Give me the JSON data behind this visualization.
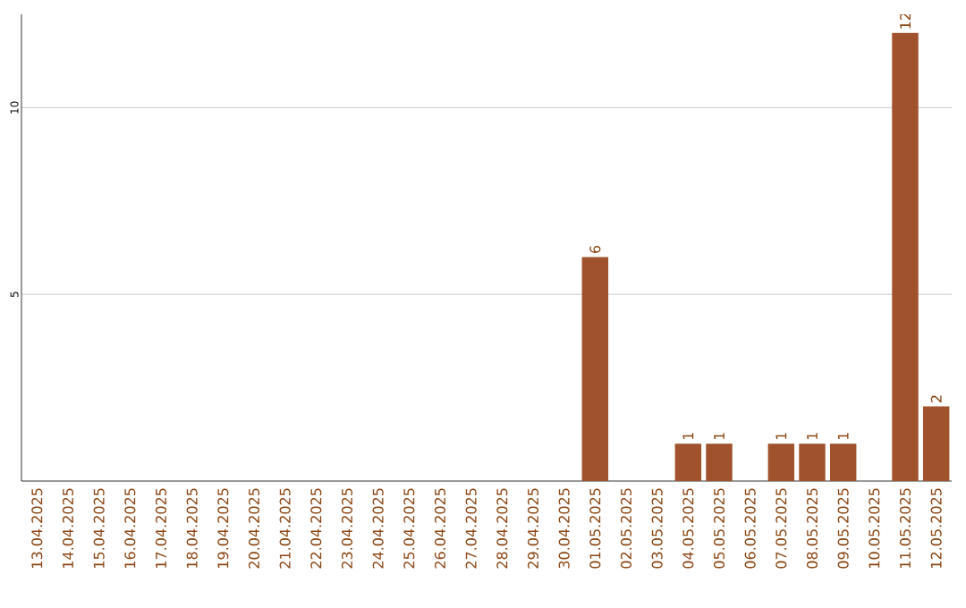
{
  "chart_data": {
    "type": "bar",
    "categories": [
      "13.04.2025",
      "14.04.2025",
      "15.04.2025",
      "16.04.2025",
      "17.04.2025",
      "18.04.2025",
      "19.04.2025",
      "20.04.2025",
      "21.04.2025",
      "22.04.2025",
      "23.04.2025",
      "24.04.2025",
      "25.04.2025",
      "26.04.2025",
      "27.04.2025",
      "28.04.2025",
      "29.04.2025",
      "30.04.2025",
      "01.05.2025",
      "02.05.2025",
      "03.05.2025",
      "04.05.2025",
      "05.05.2025",
      "06.05.2025",
      "07.05.2025",
      "08.05.2025",
      "09.05.2025",
      "10.05.2025",
      "11.05.2025",
      "12.05.2025"
    ],
    "values": [
      0,
      0,
      0,
      0,
      0,
      0,
      0,
      0,
      0,
      0,
      0,
      0,
      0,
      0,
      0,
      0,
      0,
      0,
      6,
      0,
      0,
      1,
      1,
      0,
      1,
      1,
      1,
      0,
      12,
      2
    ],
    "value_labels": [
      null,
      null,
      null,
      null,
      null,
      null,
      null,
      null,
      null,
      null,
      null,
      null,
      null,
      null,
      null,
      null,
      null,
      null,
      "6",
      null,
      null,
      "1",
      "1",
      null,
      "1",
      "1",
      "1",
      null,
      "12",
      "2"
    ],
    "color": "#a0522d",
    "ylim": [
      0,
      12.5
    ],
    "yticks": [
      5,
      10
    ],
    "grid": "y"
  }
}
